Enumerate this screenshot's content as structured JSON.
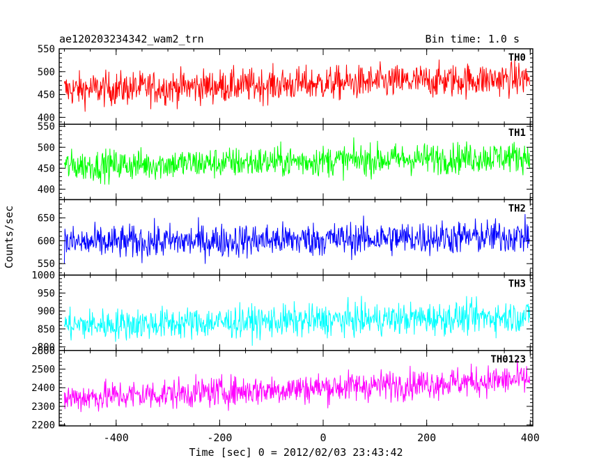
{
  "chart_data": {
    "type": "line",
    "title": "ae120203234342_wam2_trn",
    "subtitle": "Bin time: 1.0 s",
    "xlabel": "Time [sec] 0 = 2012/02/03 23:43:42",
    "ylabel": "Counts/sec",
    "xlim": [
      -510,
      405
    ],
    "x_range_data": [
      -500,
      399
    ],
    "bin_time": 1.0,
    "x_ticks": [
      -400,
      -200,
      0,
      200,
      400
    ],
    "grid": false,
    "panels": [
      {
        "name": "TH0",
        "color": "#ff0000",
        "ylim": [
          385,
          550
        ],
        "ticks": [
          400,
          450,
          500,
          550
        ],
        "approx_mean_start": 460,
        "approx_mean_end": 485,
        "approx_spread": 25
      },
      {
        "name": "TH1",
        "color": "#00ff00",
        "ylim": [
          375,
          555
        ],
        "ticks": [
          400,
          450,
          500,
          550
        ],
        "approx_mean_start": 455,
        "approx_mean_end": 478,
        "approx_spread": 25
      },
      {
        "name": "TH2",
        "color": "#0000ff",
        "ylim": [
          525,
          690
        ],
        "ticks": [
          550,
          600,
          650
        ],
        "approx_mean_start": 595,
        "approx_mean_end": 610,
        "approx_spread": 25
      },
      {
        "name": "TH3",
        "color": "#00ffff",
        "ylim": [
          790,
          1000
        ],
        "ticks": [
          800,
          850,
          900,
          950,
          1000
        ],
        "approx_mean_start": 860,
        "approx_mean_end": 885,
        "approx_spread": 30
      },
      {
        "name": "TH0123",
        "color": "#ff00ff",
        "ylim": [
          2195,
          2600
        ],
        "ticks": [
          2200,
          2300,
          2400,
          2500,
          2600
        ],
        "approx_mean_start": 2345,
        "approx_mean_end": 2445,
        "approx_spread": 55
      }
    ]
  }
}
